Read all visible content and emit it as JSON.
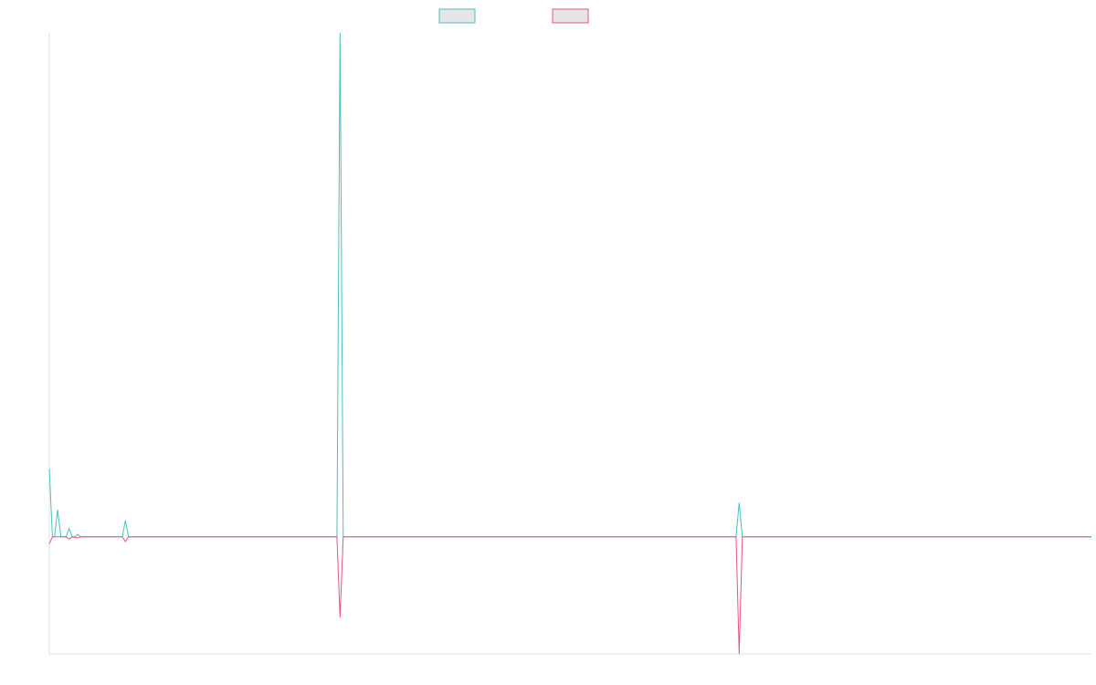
{
  "chart_data": {
    "type": "line",
    "title": "",
    "xlabel": "",
    "ylabel": "",
    "grid": false,
    "legend_position": "top-center",
    "x_range": [
      0,
      1000
    ],
    "ylim": [
      -100,
      430
    ],
    "series": [
      {
        "color": "#4bbfbf",
        "points": [
          [
            0,
            58
          ],
          [
            3,
            0
          ],
          [
            5,
            0
          ],
          [
            8,
            23
          ],
          [
            11,
            0
          ],
          [
            16,
            0
          ],
          [
            19,
            7
          ],
          [
            22,
            0
          ],
          [
            25,
            0
          ],
          [
            27,
            2
          ],
          [
            30,
            0
          ],
          [
            70,
            0
          ],
          [
            73,
            14
          ],
          [
            76,
            0
          ],
          [
            276,
            0
          ],
          [
            279,
            430
          ],
          [
            282,
            0
          ],
          [
            659,
            0
          ],
          [
            662,
            29
          ],
          [
            665,
            0
          ],
          [
            1000,
            0
          ]
        ]
      },
      {
        "color": "#e8557a",
        "points": [
          [
            0,
            -6
          ],
          [
            3,
            0
          ],
          [
            8,
            0
          ],
          [
            11,
            0
          ],
          [
            16,
            0
          ],
          [
            19,
            -2
          ],
          [
            22,
            0
          ],
          [
            27,
            -1
          ],
          [
            30,
            0
          ],
          [
            70,
            0
          ],
          [
            73,
            -4
          ],
          [
            76,
            0
          ],
          [
            276,
            0
          ],
          [
            279,
            -69
          ],
          [
            282,
            0
          ],
          [
            659,
            0
          ],
          [
            662,
            -100
          ],
          [
            665,
            0
          ],
          [
            1000,
            0
          ]
        ]
      }
    ]
  }
}
